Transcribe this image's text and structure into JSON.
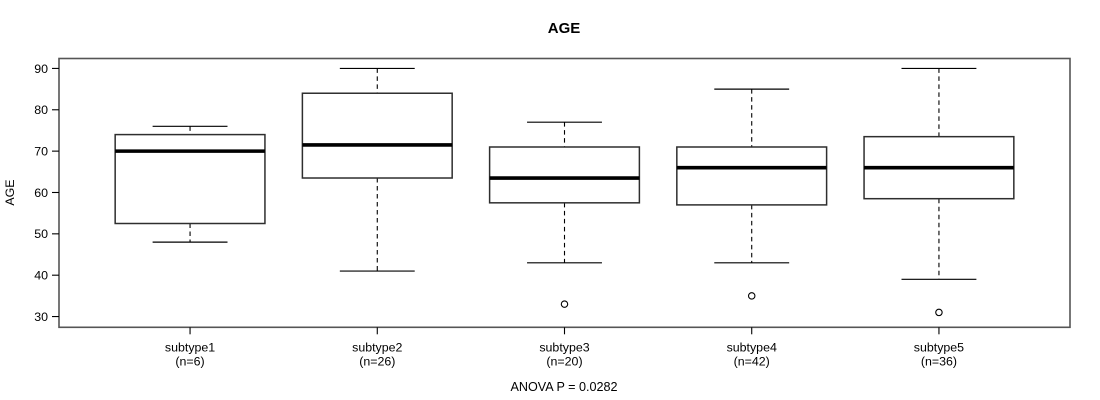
{
  "page": {
    "background": "#ffffff"
  },
  "chart_data": {
    "type": "boxplot",
    "title": "AGE",
    "ylabel": "AGE",
    "xlabel": "",
    "annotation": "ANOVA P = 0.0282",
    "ylim": [
      27.4,
      92.4
    ],
    "yticks": [
      30,
      40,
      50,
      60,
      70,
      80,
      90
    ],
    "grid": false,
    "legend": "none",
    "box_fill": "#ffffff",
    "line_color": "#000000",
    "frame_color": "#555555",
    "box_edge_color": "#2e2e2e",
    "groups": [
      {
        "label": "subtype1",
        "sublabel": "(n=6)",
        "n": 6,
        "whisker_low": 48,
        "q1": 52.5,
        "median": 70,
        "q3": 74,
        "whisker_high": 76,
        "outliers": []
      },
      {
        "label": "subtype2",
        "sublabel": "(n=26)",
        "n": 26,
        "whisker_low": 41,
        "q1": 63.5,
        "median": 71.5,
        "q3": 84,
        "whisker_high": 90,
        "outliers": []
      },
      {
        "label": "subtype3",
        "sublabel": "(n=20)",
        "n": 20,
        "whisker_low": 43,
        "q1": 57.5,
        "median": 63.5,
        "q3": 71,
        "whisker_high": 77,
        "outliers": [
          33
        ]
      },
      {
        "label": "subtype4",
        "sublabel": "(n=42)",
        "n": 42,
        "whisker_low": 43,
        "q1": 57,
        "median": 66,
        "q3": 71,
        "whisker_high": 85,
        "outliers": [
          35
        ]
      },
      {
        "label": "subtype5",
        "sublabel": "(n=36)",
        "n": 36,
        "whisker_low": 39,
        "q1": 58.5,
        "median": 66,
        "q3": 73.5,
        "whisker_high": 90,
        "outliers": [
          31
        ]
      }
    ]
  }
}
